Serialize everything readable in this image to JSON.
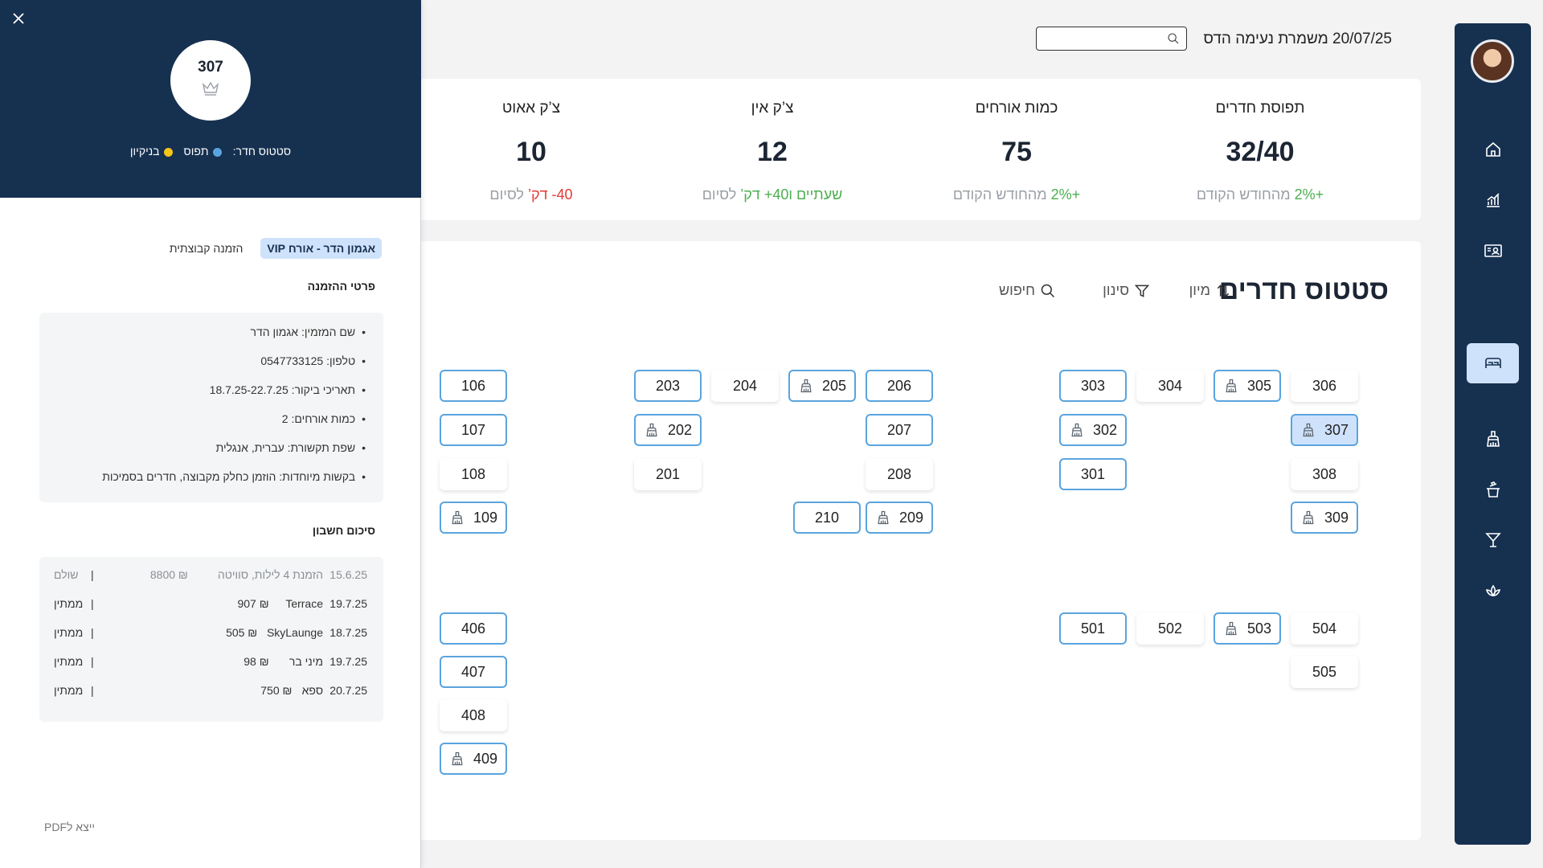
{
  "header": {
    "title": "20/07/25 משמרת נעימה הדס"
  },
  "stats": [
    {
      "label": "תפוסת חדרים",
      "value": "32/40",
      "sub_pos": "+2%",
      "sub_rest": " מהחודש הקודם"
    },
    {
      "label": "כמות אורחים",
      "value": "75",
      "sub_pos": "+2%",
      "sub_rest": " מהחודש הקודם"
    },
    {
      "label": "צ’ק אין",
      "value": "12",
      "sub_pos": "שעתיים ו40+ דק’",
      "sub_rest": " לסיום"
    },
    {
      "label": "צ’ק אאוט",
      "value": "10",
      "sub_neg": "40- דק’",
      "sub_rest": " לסיום"
    }
  ],
  "rooms_section": {
    "title": "סטטוס חדרים",
    "sort_label": "מיון",
    "filter_label": "סינון",
    "search_label": "חיפוש"
  },
  "rooms": [
    {
      "n": "106",
      "s": "blue",
      "c": false
    },
    {
      "n": "107",
      "s": "blue",
      "c": false
    },
    {
      "n": "108",
      "s": "plain",
      "c": false
    },
    {
      "n": "109",
      "s": "blue",
      "c": true
    },
    {
      "n": "203",
      "s": "blue",
      "c": false
    },
    {
      "n": "204",
      "s": "plain",
      "c": false
    },
    {
      "n": "205",
      "s": "blue",
      "c": true
    },
    {
      "n": "206",
      "s": "blue",
      "c": false
    },
    {
      "n": "202",
      "s": "blue",
      "c": true
    },
    {
      "n": "207",
      "s": "blue",
      "c": false
    },
    {
      "n": "201",
      "s": "plain",
      "c": false
    },
    {
      "n": "208",
      "s": "plain",
      "c": false
    },
    {
      "n": "210",
      "s": "blue",
      "c": false
    },
    {
      "n": "209",
      "s": "blue",
      "c": true
    },
    {
      "n": "303",
      "s": "blue",
      "c": false
    },
    {
      "n": "304",
      "s": "plain",
      "c": false
    },
    {
      "n": "305",
      "s": "blue",
      "c": true
    },
    {
      "n": "306",
      "s": "plain",
      "c": false
    },
    {
      "n": "302",
      "s": "blue",
      "c": true
    },
    {
      "n": "307",
      "s": "sel",
      "c": true
    },
    {
      "n": "301",
      "s": "blue",
      "c": false
    },
    {
      "n": "308",
      "s": "plain",
      "c": false
    },
    {
      "n": "309",
      "s": "blue",
      "c": true
    },
    {
      "n": "406",
      "s": "blue",
      "c": false
    },
    {
      "n": "407",
      "s": "blue",
      "c": false
    },
    {
      "n": "408",
      "s": "plain",
      "c": false
    },
    {
      "n": "409",
      "s": "blue",
      "c": true
    },
    {
      "n": "501",
      "s": "blue",
      "c": false
    },
    {
      "n": "502",
      "s": "plain",
      "c": false
    },
    {
      "n": "503",
      "s": "blue",
      "c": true
    },
    {
      "n": "504",
      "s": "plain",
      "c": false
    },
    {
      "n": "505",
      "s": "plain",
      "c": false
    }
  ],
  "panel": {
    "room_number": "307",
    "status_label": "סטטוס חדר:",
    "status_occupied": "תפוס",
    "status_cleaning": "בניקיון",
    "tabs": [
      "אגמון הדר - אורח VIP",
      "הזמנה קבוצתית"
    ],
    "booking_title": "פרטי ההזמנה",
    "booking_details": [
      "שם המזמין: אגמון הדר",
      "טלפון: 0547733125",
      "תאריכי ביקור: 18.7.25-22.7.25",
      "כמות אורחים: 2",
      "שפת תקשורת: עברית, אנגלית",
      "בקשות מיוחדות: הוזמן כחלק מקבוצה, חדרים בסמיכות"
    ],
    "bill_title": "סיכום חשבון",
    "bill": [
      {
        "date": "15.6.25",
        "desc": "הזמנת 4 לילות, סוויטה",
        "amount": "₪ 8800",
        "status": "שולם"
      },
      {
        "date": "19.7.25",
        "desc": "Terrace",
        "amount": "₪ 907",
        "status": "ממתין"
      },
      {
        "date": "18.7.25",
        "desc": "SkyLaunge",
        "amount": "₪ 505",
        "status": "ממתין"
      },
      {
        "date": "19.7.25",
        "desc": "מיני בר",
        "amount": "₪ 98",
        "status": "ממתין"
      },
      {
        "date": "20.7.25",
        "desc": "ספא",
        "amount": "₪ 750",
        "status": "ממתין"
      }
    ],
    "export_label": "ייצא לPDF"
  },
  "colors": {
    "navy": "#163050",
    "accent_light": "#cfe2fb",
    "room_border": "#5aa4de",
    "positive": "#4caf50",
    "negative": "#e53935",
    "occupied_dot": "#5aa4de",
    "cleaning_dot": "#f5c518"
  },
  "icons": [
    "home-icon",
    "chart-icon",
    "contact-card-icon",
    "bed-icon",
    "cleaning-icon",
    "trash-icon",
    "cocktail-icon",
    "lotus-icon",
    "search-icon",
    "sort-icon",
    "filter-icon",
    "close-icon",
    "crown-icon"
  ]
}
